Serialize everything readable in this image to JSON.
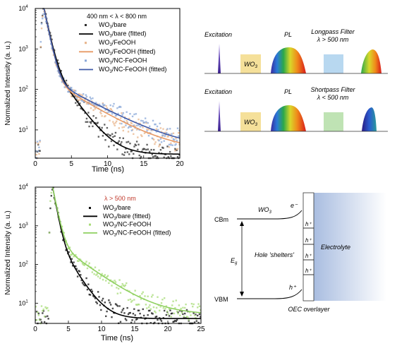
{
  "chart_data": [
    {
      "type": "scatter",
      "annotation": "400 nm < λ < 800 nm",
      "xlabel": "Time (ns)",
      "ylabel": "Normalized Intensity (a. u.)",
      "xlim": [
        0,
        20
      ],
      "ylim": [
        2,
        10000
      ],
      "yscale": "log",
      "xticks": [
        "0",
        "5",
        "10",
        "15",
        "20"
      ],
      "yticks": [
        "10",
        "10",
        "10",
        "10"
      ],
      "ytick_exponents": [
        "1",
        "2",
        "3",
        "4"
      ],
      "legend_position": "top-right",
      "series": [
        {
          "name": "WO3/bare",
          "name_main": "WO",
          "name_sub": "3",
          "name_rest": "/bare",
          "kind": "scatter",
          "color": "#303030",
          "peak_x": 1.2,
          "decays": [
            [
              1.0,
              0.5
            ],
            [
              0.06,
              1.8
            ]
          ],
          "baseline": 2.5
        },
        {
          "name": "WO3/bare (fitted)",
          "name_main": "WO",
          "name_sub": "3",
          "name_rest": "/bare (fitted)",
          "kind": "line",
          "color": "#000000",
          "peak_x": 1.2,
          "decays": [
            [
              1.0,
              0.5
            ],
            [
              0.06,
              1.8
            ]
          ],
          "baseline": 2.5
        },
        {
          "name": "WO3/FeOOH",
          "name_main": "WO",
          "name_sub": "3",
          "name_rest": "/FeOOH",
          "kind": "scatter",
          "color": "#e8b48a",
          "peak_x": 1.2,
          "decays": [
            [
              1.0,
              0.5
            ],
            [
              0.02,
              4.0
            ]
          ],
          "baseline": 3.0
        },
        {
          "name": "WO3/FeOOH (fitted)",
          "name_main": "WO",
          "name_sub": "3",
          "name_rest": "/FeOOH (fitted)",
          "kind": "line",
          "color": "#e89a66",
          "peak_x": 1.2,
          "decays": [
            [
              1.0,
              0.5
            ],
            [
              0.02,
              4.0
            ]
          ],
          "baseline": 3.0
        },
        {
          "name": "WO3/NC-FeOOH",
          "name_main": "WO",
          "name_sub": "3",
          "name_rest": "/NC-FeOOH",
          "kind": "scatter",
          "color": "#8aa8d8",
          "peak_x": 1.2,
          "decays": [
            [
              1.0,
              0.5
            ],
            [
              0.02,
              4.5
            ]
          ],
          "baseline": 3.2
        },
        {
          "name": "WO3/NC-FeOOH (fitted)",
          "name_main": "WO",
          "name_sub": "3",
          "name_rest": "/NC-FeOOH (fitted)",
          "kind": "line",
          "color": "#3f5aa8",
          "peak_x": 1.2,
          "decays": [
            [
              1.0,
              0.5
            ],
            [
              0.02,
              4.5
            ]
          ],
          "baseline": 3.2
        }
      ]
    },
    {
      "type": "scatter",
      "annotation": "λ > 500 nm",
      "xlabel": "Time (ns)",
      "ylabel": "Normalized Intensity (a. u.)",
      "xlim": [
        0,
        25
      ],
      "ylim": [
        3,
        10000
      ],
      "yscale": "log",
      "xticks": [
        "0",
        "5",
        "10",
        "15",
        "20",
        "25"
      ],
      "yticks": [
        "10",
        "10",
        "10",
        "10"
      ],
      "ytick_exponents": [
        "1",
        "2",
        "3",
        "4"
      ],
      "legend_position": "top-right",
      "series": [
        {
          "name": "WO3/bare",
          "name_main": "WO",
          "name_sub": "3",
          "name_rest": "/bare",
          "kind": "scatter",
          "color": "#111111",
          "peak_x": 2.6,
          "decays": [
            [
              1.0,
              0.45
            ],
            [
              0.06,
              1.6
            ]
          ],
          "baseline": 4.0
        },
        {
          "name": "WO3/bare (fitted)",
          "name_main": "WO",
          "name_sub": "3",
          "name_rest": "/bare (fitted)",
          "kind": "line",
          "color": "#000000",
          "peak_x": 2.6,
          "decays": [
            [
              1.0,
              0.45
            ],
            [
              0.06,
              1.6
            ]
          ],
          "baseline": 4.0
        },
        {
          "name": "WO3/NC-FeOOH",
          "name_main": "WO",
          "name_sub": "3",
          "name_rest": "/NC-FeOOH",
          "kind": "scatter",
          "color": "#a8dc78",
          "peak_x": 2.6,
          "decays": [
            [
              1.0,
              0.5
            ],
            [
              0.04,
              3.5
            ]
          ],
          "baseline": 5.0
        },
        {
          "name": "WO3/NC-FeOOH (fitted)",
          "name_main": "WO",
          "name_sub": "3",
          "name_rest": "/NC-FeOOH (fitted)",
          "kind": "line",
          "color": "#8fd060",
          "peak_x": 2.6,
          "decays": [
            [
              1.0,
              0.5
            ],
            [
              0.04,
              3.5
            ]
          ],
          "baseline": 5.0
        }
      ]
    }
  ],
  "schematic_top": {
    "excitation_label": "Excitation",
    "sample_label_main": "WO",
    "sample_label_sub": "3",
    "pl_label": "PL",
    "filter_label": "Longpass Filter",
    "filter_condition": "λ > 500 nm",
    "filter_color": "#b8d8f0"
  },
  "schematic_bottom": {
    "excitation_label": "Excitation",
    "sample_label_main": "WO",
    "sample_label_sub": "3",
    "pl_label": "PL",
    "filter_label": "Shortpass Filter",
    "filter_condition": "λ < 500 nm",
    "filter_color": "#bfe3b4"
  },
  "band_diagram": {
    "cbm_label": "CBm",
    "vbm_label": "VBM",
    "material_main": "WO",
    "material_sub": "3",
    "electron_label": "e⁻",
    "hole_label": "h⁺",
    "hole_shelters_label": "Hole 'shelters'",
    "gap_label_main": "E",
    "gap_label_sub": "g",
    "electrolyte_label": "Electrolyte",
    "overlayer_label": "OEC overlayer"
  },
  "colors": {
    "excitation": "#5a3aa0",
    "sample_box": "#f5e09a",
    "annotation_red": "#c0392b",
    "electrolyte_gradient_start": "#a9bde0"
  }
}
